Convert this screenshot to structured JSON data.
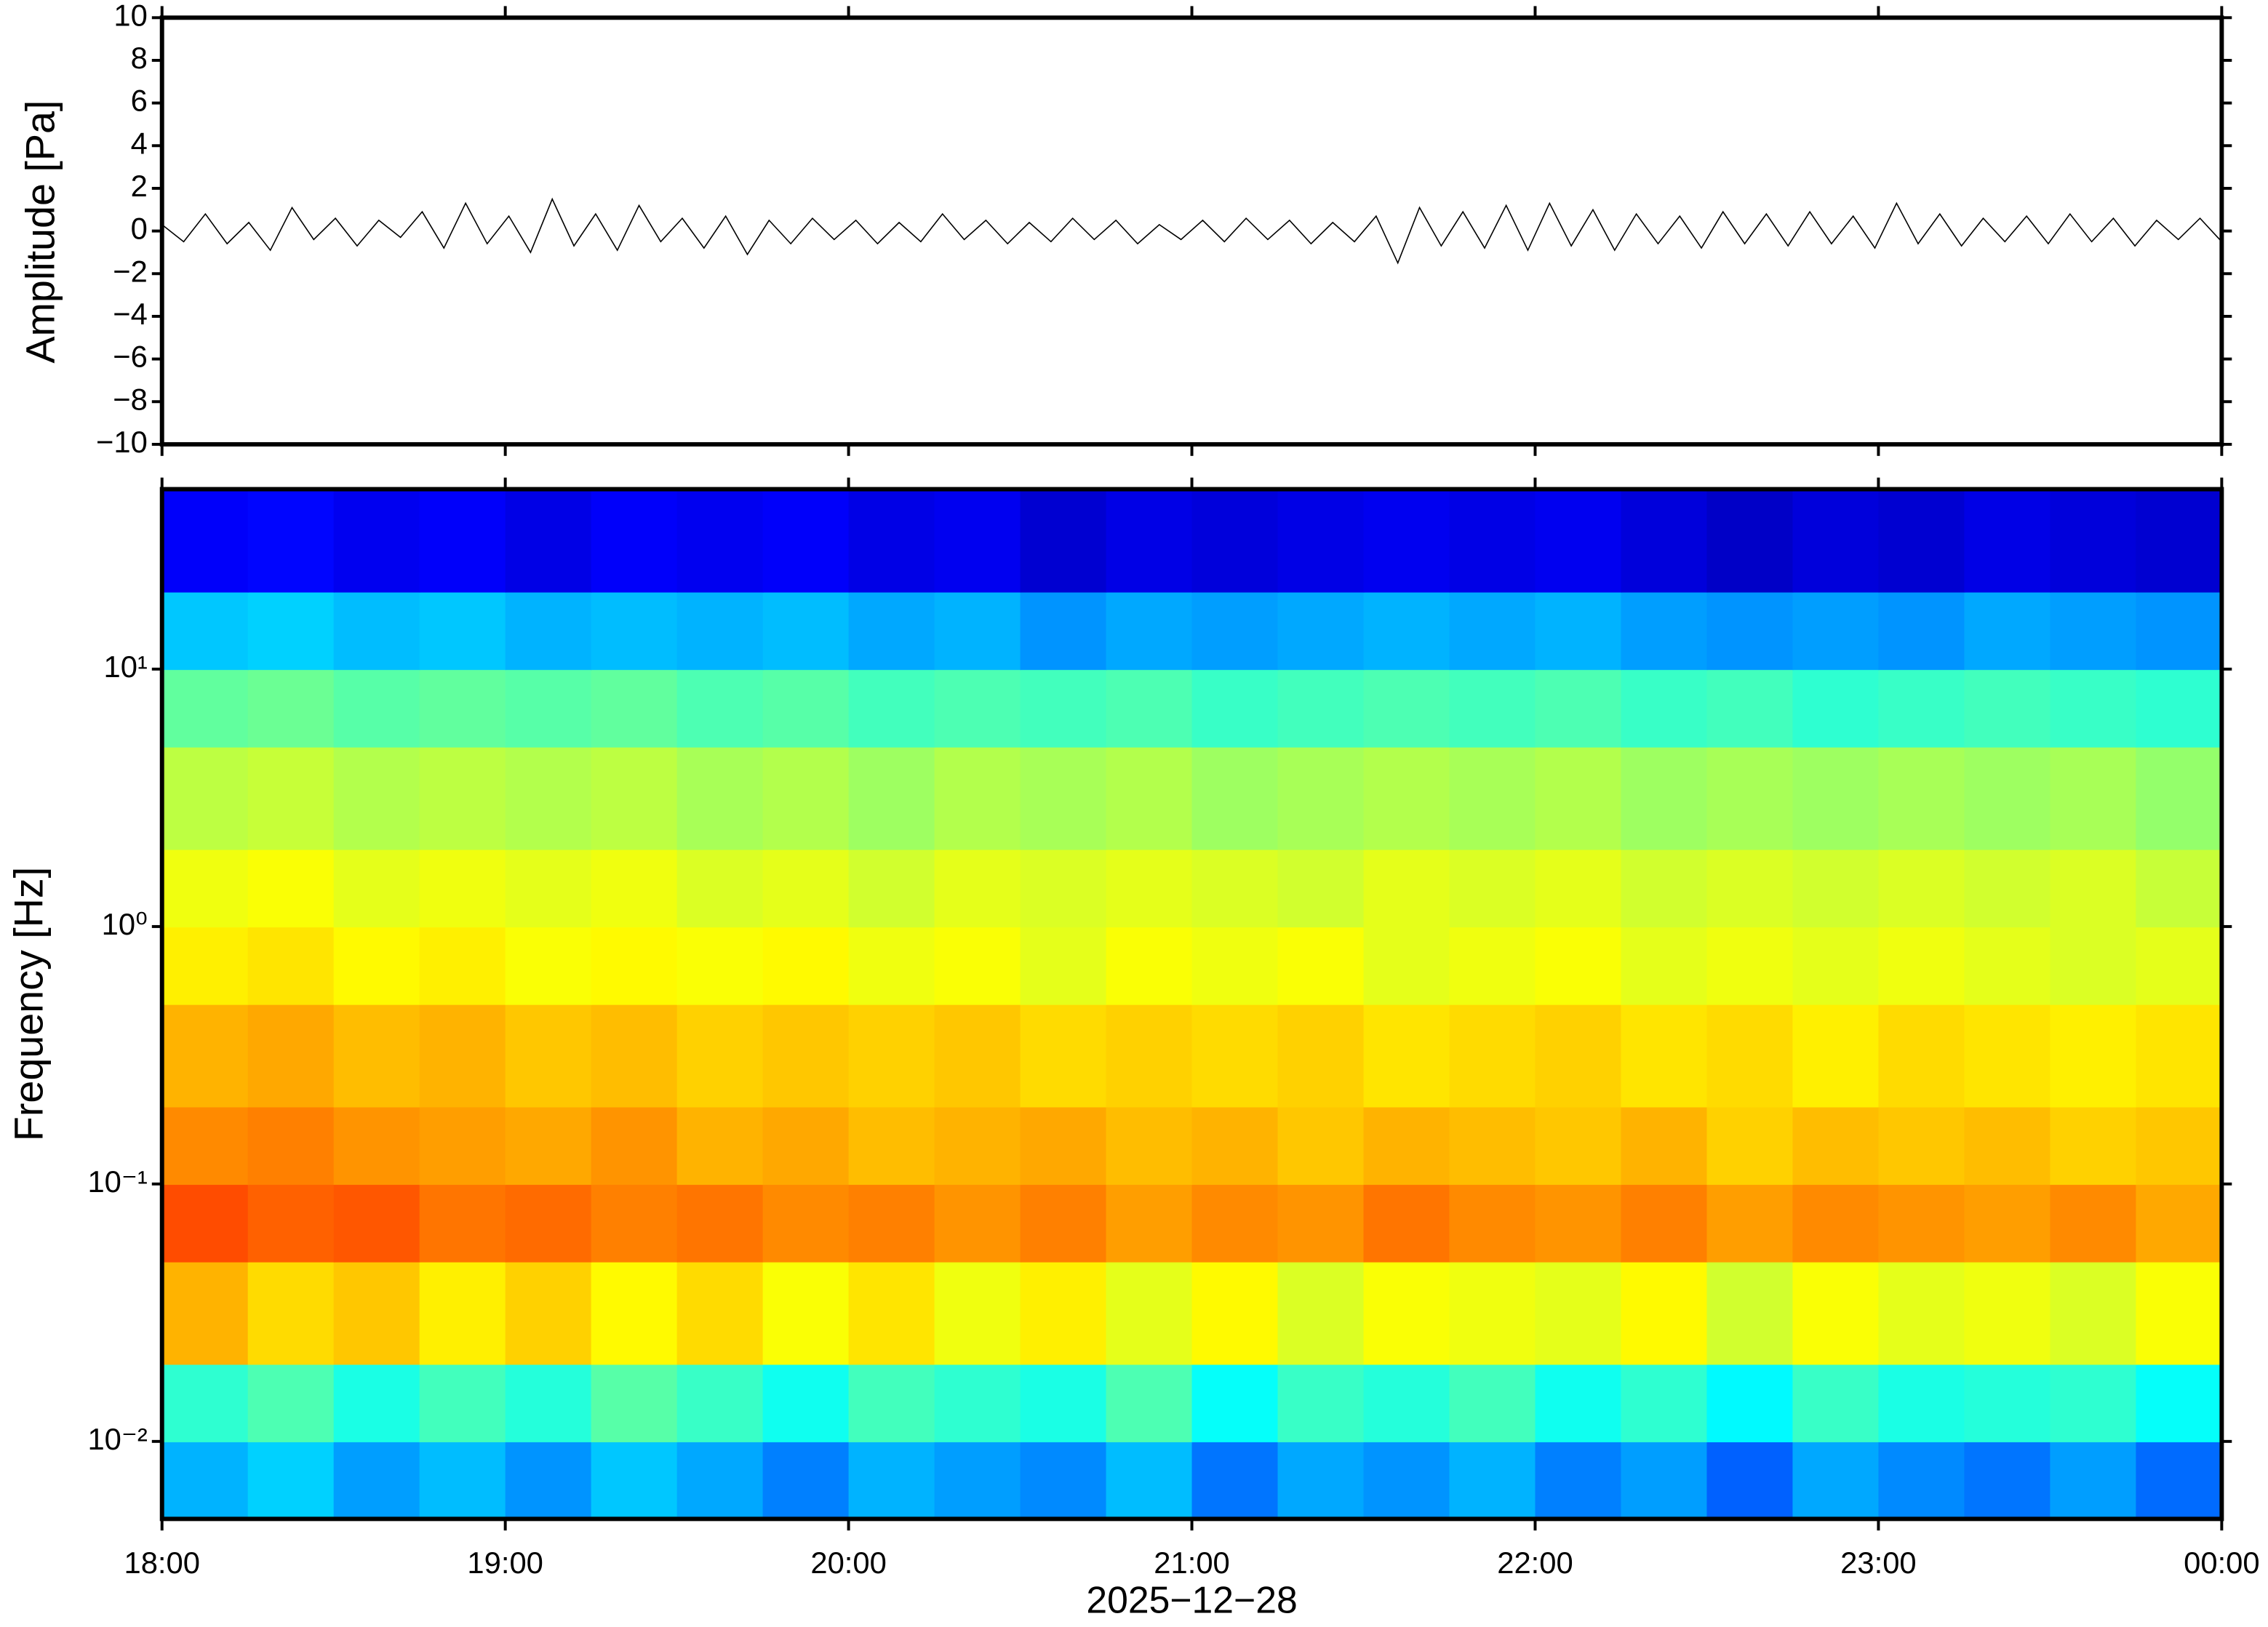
{
  "chart_data": [
    {
      "type": "line",
      "ylabel": "Amplitude [Pa]",
      "color": "#000000",
      "ylim": [
        -10,
        10
      ],
      "yticks": [
        {
          "value": -10,
          "label": "−10"
        },
        {
          "value": -8,
          "label": "−8"
        },
        {
          "value": -6,
          "label": "−6"
        },
        {
          "value": -4,
          "label": "−4"
        },
        {
          "value": -2,
          "label": "−2"
        },
        0,
        2,
        4,
        6,
        8,
        10
      ],
      "values": [
        0.3,
        -0.5,
        0.8,
        -0.6,
        0.4,
        -0.9,
        1.1,
        -0.4,
        0.6,
        -0.7,
        0.5,
        -0.3,
        0.9,
        -0.8,
        1.3,
        -0.6,
        0.7,
        -1.0,
        1.5,
        -0.7,
        0.8,
        -0.9,
        1.2,
        -0.5,
        0.6,
        -0.8,
        0.7,
        -1.1,
        0.5,
        -0.6,
        0.6,
        -0.4,
        0.5,
        -0.6,
        0.4,
        -0.5,
        0.8,
        -0.4,
        0.5,
        -0.6,
        0.4,
        -0.5,
        0.6,
        -0.4,
        0.5,
        -0.6,
        0.3,
        -0.4,
        0.5,
        -0.5,
        0.6,
        -0.4,
        0.5,
        -0.6,
        0.4,
        -0.5,
        0.7,
        -1.5,
        1.1,
        -0.7,
        0.9,
        -0.8,
        1.2,
        -0.9,
        1.3,
        -0.7,
        1.0,
        -0.9,
        0.8,
        -0.6,
        0.7,
        -0.8,
        0.9,
        -0.6,
        0.8,
        -0.7,
        0.9,
        -0.6,
        0.7,
        -0.8,
        1.3,
        -0.6,
        0.8,
        -0.7,
        0.6,
        -0.5,
        0.7,
        -0.6,
        0.8,
        -0.5,
        0.6,
        -0.7,
        0.5,
        -0.4,
        0.6,
        -0.5
      ]
    },
    {
      "type": "heatmap",
      "ylabel": "Frequency [Hz]",
      "xlabel": "2025−12−28",
      "log_y": true,
      "colormap": "jet",
      "xticks": [
        "18:00",
        "19:00",
        "20:00",
        "21:00",
        "22:00",
        "23:00",
        "00:00"
      ],
      "ylim": [
        0.005,
        50
      ],
      "yticks": [
        {
          "value": 0.01,
          "label": "10⁻²"
        },
        {
          "value": 0.1,
          "label": "10⁻¹"
        },
        {
          "value": 1,
          "label": "10⁰"
        },
        {
          "value": 10,
          "label": "10¹"
        }
      ],
      "ybins": [
        0.005,
        0.01,
        0.02,
        0.05,
        0.1,
        0.2,
        0.5,
        1,
        2,
        5,
        10,
        20,
        50
      ],
      "z": [
        [
          0.3,
          0.33,
          0.28,
          0.31,
          0.27,
          0.32,
          0.29,
          0.25,
          0.3,
          0.28,
          0.26,
          0.31,
          0.24,
          0.29,
          0.27,
          0.3,
          0.25,
          0.28,
          0.22,
          0.29,
          0.26,
          0.24,
          0.28,
          0.23
        ],
        [
          0.42,
          0.45,
          0.4,
          0.44,
          0.41,
          0.46,
          0.43,
          0.39,
          0.44,
          0.42,
          0.4,
          0.45,
          0.38,
          0.43,
          0.41,
          0.44,
          0.39,
          0.42,
          0.37,
          0.43,
          0.4,
          0.41,
          0.42,
          0.38
        ],
        [
          0.7,
          0.66,
          0.68,
          0.64,
          0.67,
          0.63,
          0.66,
          0.62,
          0.65,
          0.61,
          0.64,
          0.6,
          0.63,
          0.59,
          0.62,
          0.61,
          0.6,
          0.63,
          0.58,
          0.62,
          0.6,
          0.61,
          0.59,
          0.62
        ],
        [
          0.8,
          0.78,
          0.79,
          0.76,
          0.77,
          0.75,
          0.76,
          0.74,
          0.75,
          0.73,
          0.75,
          0.72,
          0.74,
          0.73,
          0.76,
          0.74,
          0.73,
          0.75,
          0.72,
          0.74,
          0.73,
          0.72,
          0.74,
          0.71
        ],
        [
          0.74,
          0.75,
          0.73,
          0.72,
          0.71,
          0.73,
          0.7,
          0.71,
          0.69,
          0.7,
          0.71,
          0.69,
          0.7,
          0.68,
          0.7,
          0.69,
          0.68,
          0.7,
          0.67,
          0.69,
          0.68,
          0.69,
          0.67,
          0.68
        ],
        [
          0.7,
          0.71,
          0.69,
          0.7,
          0.68,
          0.69,
          0.67,
          0.68,
          0.67,
          0.68,
          0.66,
          0.67,
          0.66,
          0.67,
          0.65,
          0.66,
          0.67,
          0.65,
          0.66,
          0.64,
          0.66,
          0.65,
          0.64,
          0.65
        ],
        [
          0.64,
          0.65,
          0.63,
          0.64,
          0.62,
          0.63,
          0.62,
          0.63,
          0.61,
          0.62,
          0.6,
          0.62,
          0.61,
          0.62,
          0.6,
          0.61,
          0.62,
          0.6,
          0.61,
          0.6,
          0.61,
          0.6,
          0.59,
          0.6
        ],
        [
          0.61,
          0.62,
          0.6,
          0.61,
          0.6,
          0.61,
          0.59,
          0.6,
          0.58,
          0.6,
          0.59,
          0.6,
          0.59,
          0.58,
          0.6,
          0.59,
          0.6,
          0.58,
          0.59,
          0.58,
          0.59,
          0.58,
          0.59,
          0.57
        ],
        [
          0.56,
          0.57,
          0.55,
          0.56,
          0.55,
          0.56,
          0.54,
          0.55,
          0.53,
          0.55,
          0.54,
          0.55,
          0.53,
          0.54,
          0.55,
          0.54,
          0.55,
          0.53,
          0.54,
          0.53,
          0.54,
          0.53,
          0.54,
          0.52
        ],
        [
          0.47,
          0.48,
          0.46,
          0.47,
          0.46,
          0.47,
          0.45,
          0.46,
          0.44,
          0.45,
          0.44,
          0.45,
          0.43,
          0.44,
          0.45,
          0.44,
          0.45,
          0.43,
          0.44,
          0.42,
          0.43,
          0.44,
          0.43,
          0.42
        ],
        [
          0.32,
          0.33,
          0.31,
          0.32,
          0.3,
          0.31,
          0.3,
          0.31,
          0.29,
          0.3,
          0.27,
          0.29,
          0.28,
          0.29,
          0.3,
          0.29,
          0.3,
          0.28,
          0.27,
          0.28,
          0.27,
          0.29,
          0.28,
          0.27
        ],
        [
          0.12,
          0.13,
          0.11,
          0.12,
          0.1,
          0.12,
          0.11,
          0.12,
          0.1,
          0.11,
          0.08,
          0.1,
          0.09,
          0.1,
          0.11,
          0.1,
          0.11,
          0.09,
          0.07,
          0.09,
          0.08,
          0.1,
          0.09,
          0.08
        ]
      ]
    }
  ]
}
